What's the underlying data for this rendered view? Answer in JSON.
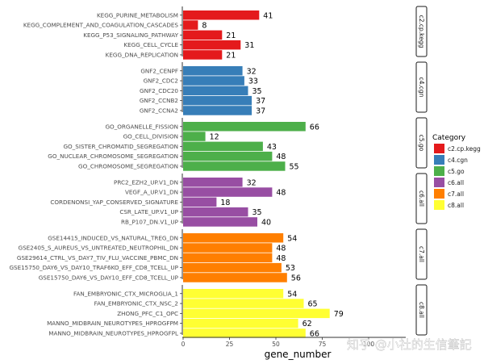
{
  "chart_data": {
    "type": "bar",
    "orientation": "horizontal",
    "faceted": true,
    "xlabel": "gene_number",
    "ylabel": "",
    "xlim": [
      0,
      120
    ],
    "x_ticks": [
      0,
      25,
      50,
      75,
      100
    ],
    "legend": {
      "title": "Category",
      "placement": "right"
    },
    "grid": false,
    "facets": [
      {
        "name": "c2.cp.kegg",
        "color": "#e41a1c",
        "bars": [
          {
            "label": "KEGG_PURINE_METABOLISM",
            "value": 41
          },
          {
            "label": "KEGG_COMPLEMENT_AND_COAGULATION_CASCADES",
            "value": 8
          },
          {
            "label": "KEGG_P53_SIGNALING_PATHWAY",
            "value": 21
          },
          {
            "label": "KEGG_CELL_CYCLE",
            "value": 31
          },
          {
            "label": "KEGG_DNA_REPLICATION",
            "value": 21
          }
        ]
      },
      {
        "name": "c4.cgn",
        "color": "#377eb8",
        "bars": [
          {
            "label": "GNF2_CENPF",
            "value": 32
          },
          {
            "label": "GNF2_CDC2",
            "value": 33
          },
          {
            "label": "GNF2_CDC20",
            "value": 35
          },
          {
            "label": "GNF2_CCNB2",
            "value": 37
          },
          {
            "label": "GNF2_CCNA2",
            "value": 37
          }
        ]
      },
      {
        "name": "c5.go",
        "color": "#4daf4a",
        "bars": [
          {
            "label": "GO_ORGANELLE_FISSION",
            "value": 66
          },
          {
            "label": "GO_CELL_DIVISION",
            "value": 12,
            "display": "12"
          },
          {
            "label": "GO_SISTER_CHROMATID_SEGREGATION",
            "value": 43
          },
          {
            "label": "GO_NUCLEAR_CHROMOSOME_SEGREGATION",
            "value": 48
          },
          {
            "label": "GO_CHROMOSOME_SEGREGATION",
            "value": 55
          }
        ]
      },
      {
        "name": "c6.all",
        "color": "#984ea3",
        "bars": [
          {
            "label": "PRC2_EZH2_UP.V1_DN",
            "value": 32
          },
          {
            "label": "VEGF_A_UP.V1_DN",
            "value": 48
          },
          {
            "label": "CORDENONSI_YAP_CONSERVED_SIGNATURE",
            "value": 18
          },
          {
            "label": "CSR_LATE_UP.V1_UP",
            "value": 35
          },
          {
            "label": "RB_P107_DN.V1_UP",
            "value": 40
          }
        ]
      },
      {
        "name": "c7.all",
        "color": "#ff7f00",
        "bars": [
          {
            "label": "GSE14415_INDUCED_VS_NATURAL_TREG_DN",
            "value": 54
          },
          {
            "label": "GSE2405_S_AUREUS_VS_UNTREATED_NEUTROPHIL_DN",
            "value": 48
          },
          {
            "label": "GSE29614_CTRL_VS_DAY7_TIV_FLU_VACCINE_PBMC_DN",
            "value": 48
          },
          {
            "label": "GSE15750_DAY6_VS_DAY10_TRAF6KO_EFF_CD8_TCELL_UP",
            "value": 53
          },
          {
            "label": "GSE15750_DAY6_VS_DAY10_EFF_CD8_TCELL_UP",
            "value": 56
          }
        ]
      },
      {
        "name": "c8.all",
        "color": "#ffff33",
        "bars": [
          {
            "label": "FAN_EMBRYONIC_CTX_MICROGLIA_1",
            "value": 54
          },
          {
            "label": "FAN_EMBRYONIC_CTX_NSC_2",
            "value": 65
          },
          {
            "label": "ZHONG_PFC_C1_OPC",
            "value": 79
          },
          {
            "label": "MANNO_MIDBRAIN_NEUROTYPES_HPROGFPM",
            "value": 62
          },
          {
            "label": "MANNO_MIDBRAIN_NEUROTYPES_HPROGFPL",
            "value": 66
          }
        ]
      }
    ]
  },
  "watermark": "知乎 @小社的生信筆記"
}
